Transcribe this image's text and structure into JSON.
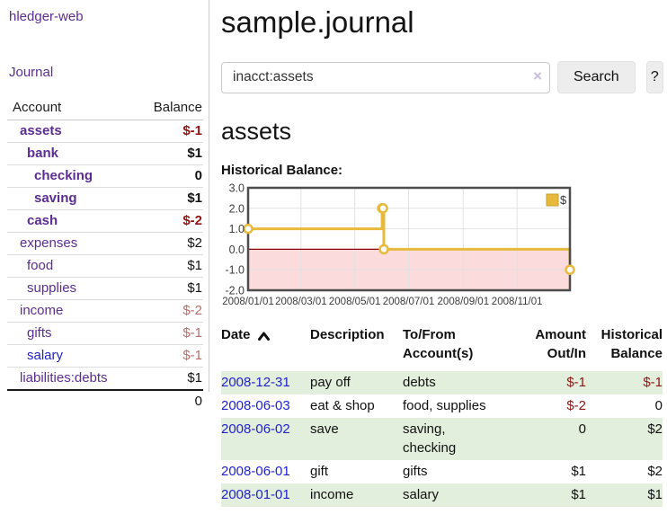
{
  "app": {
    "title": "hledger-web"
  },
  "nav": {
    "journal": "Journal"
  },
  "colors": {
    "link_purple": "#5b2d90",
    "link_blue": "#2222cc",
    "negative": "#8f1414",
    "negative_soft": "#b5706a",
    "row_green": "#e3efdd"
  },
  "sidebar": {
    "header": {
      "account": "Account",
      "balance": "Balance"
    },
    "accounts": [
      {
        "name": "assets",
        "depth": 1,
        "bold": true,
        "balance": "$-1",
        "balance_class": "neg-strong"
      },
      {
        "name": "bank",
        "depth": 2,
        "bold": true,
        "balance": "$1",
        "balance_class": "pos"
      },
      {
        "name": "checking",
        "depth": 3,
        "bold": true,
        "balance": "0",
        "balance_class": "pos"
      },
      {
        "name": "saving",
        "depth": 3,
        "bold": true,
        "balance": "$1",
        "balance_class": "pos"
      },
      {
        "name": "cash",
        "depth": 2,
        "bold": true,
        "balance": "$-2",
        "balance_class": "neg-strong"
      },
      {
        "name": "expenses",
        "depth": 1,
        "bold": false,
        "balance": "$2",
        "balance_class": "pos"
      },
      {
        "name": "food",
        "depth": 2,
        "bold": false,
        "balance": "$1",
        "balance_class": "pos"
      },
      {
        "name": "supplies",
        "depth": 2,
        "bold": false,
        "balance": "$1",
        "balance_class": "pos"
      },
      {
        "name": "income",
        "depth": 1,
        "bold": false,
        "balance": "$-2",
        "balance_class": "neg-soft"
      },
      {
        "name": "gifts",
        "depth": 2,
        "bold": false,
        "balance": "$-1",
        "balance_class": "neg-soft"
      },
      {
        "name": "salary",
        "depth": 2,
        "bold": false,
        "balance": "$-1",
        "balance_class": "neg-soft",
        "link_style": "blue"
      },
      {
        "name": "liabilities:debts",
        "depth": 1,
        "bold": false,
        "balance": "$1",
        "balance_class": "pos"
      }
    ],
    "total": "0"
  },
  "header": {
    "title": "sample.journal"
  },
  "search": {
    "value": "inacct:assets",
    "clear_icon": "×",
    "button_label": "Search",
    "help_label": "?"
  },
  "main": {
    "account_title": "assets",
    "chart_label": "Historical Balance:"
  },
  "chart_data": {
    "type": "line",
    "title": "Historical Balance",
    "step": true,
    "currency_legend": "$",
    "series": [
      {
        "name": "$",
        "color": "#e7b93c",
        "points": [
          {
            "date": "2008-01-01",
            "value": 1
          },
          {
            "date": "2008-06-01",
            "value": 2
          },
          {
            "date": "2008-06-02",
            "value": 2
          },
          {
            "date": "2008-06-03",
            "value": 0
          },
          {
            "date": "2008-12-31",
            "value": -1
          }
        ]
      }
    ],
    "xlim": [
      "2008-01-01",
      "2008-12-31"
    ],
    "ylim": [
      -2,
      3
    ],
    "y_ticks": [
      {
        "value": 3,
        "label": "3.0"
      },
      {
        "value": 2,
        "label": "2.0"
      },
      {
        "value": 1,
        "label": "1.0"
      },
      {
        "value": 0,
        "label": "0.0"
      },
      {
        "value": -1,
        "label": "-1.0"
      },
      {
        "value": -2,
        "label": "-2.0"
      }
    ],
    "x_ticks": [
      {
        "date": "2008-01-01",
        "label": "2008/01/01"
      },
      {
        "date": "2008-03-01",
        "label": "2008/03/01"
      },
      {
        "date": "2008-05-01",
        "label": "2008/05/01"
      },
      {
        "date": "2008-07-01",
        "label": "2008/07/01"
      },
      {
        "date": "2008-09-01",
        "label": "2008/09/01"
      },
      {
        "date": "2008-11-01",
        "label": "2008/11/01"
      }
    ],
    "grid": true,
    "legend_position": "top-right",
    "negative_region_fill": "#fbdbdb",
    "zero_line_color": "#8b0000",
    "marker": {
      "fill": "#ffffff",
      "stroke": "#e7b93c"
    }
  },
  "register": {
    "sort_icon": "chevron-up",
    "columns": [
      {
        "line1": "Date",
        "line2": ""
      },
      {
        "line1": "Description",
        "line2": ""
      },
      {
        "line1": "To/From",
        "line2": "Account(s)"
      },
      {
        "line1": "Amount",
        "line2": "Out/In"
      },
      {
        "line1": "Historical",
        "line2": "Balance"
      }
    ],
    "rows": [
      {
        "date": "2008-12-31",
        "description": "pay off",
        "accounts": "debts",
        "amount": "$-1",
        "amount_neg": true,
        "balance": "$-1",
        "balance_neg": true
      },
      {
        "date": "2008-06-03",
        "description": "eat & shop",
        "accounts": "food, supplies",
        "amount": "$-2",
        "amount_neg": true,
        "balance": "0",
        "balance_neg": false
      },
      {
        "date": "2008-06-02",
        "description": "save",
        "accounts": "saving,\nchecking",
        "amount": "0",
        "amount_neg": false,
        "balance": "$2",
        "balance_neg": false
      },
      {
        "date": "2008-06-01",
        "description": "gift",
        "accounts": "gifts",
        "amount": "$1",
        "amount_neg": false,
        "balance": "$2",
        "balance_neg": false
      },
      {
        "date": "2008-01-01",
        "description": "income",
        "accounts": "salary",
        "amount": "$1",
        "amount_neg": false,
        "balance": "$1",
        "balance_neg": false
      }
    ]
  }
}
